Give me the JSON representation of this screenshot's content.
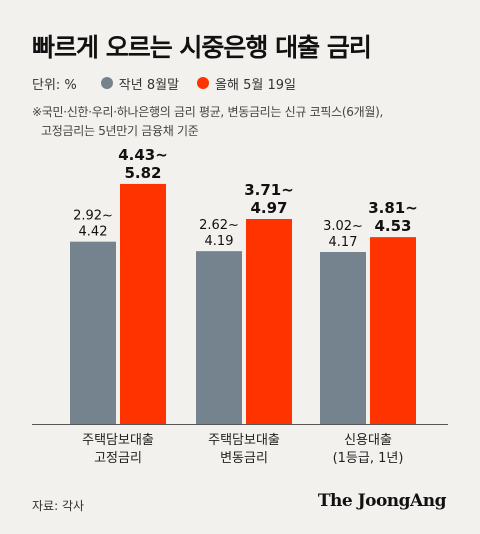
{
  "title": "빠르게 오르는 시중은행 대출 금리",
  "unit": "단위: %",
  "note": [
    "※국민·신한·우리·하나은행의 금리 평균, 변동금리는 신규 코픽스(6개월),",
    "고정금리는 5년만기 금융채 기준"
  ],
  "source": "자료: 각사",
  "brand": "The JoongAng",
  "colors": {
    "prev": "#75838f",
    "curr": "#ff3300",
    "axis": "#555555"
  },
  "chart_data": {
    "type": "bar",
    "categories": [
      [
        "주택담보대출",
        "고정금리"
      ],
      [
        "주택담보대출",
        "변동금리"
      ],
      [
        "신용대출",
        "(1등급, 1년)"
      ]
    ],
    "series": [
      {
        "name": "작년 8월말",
        "values": [
          4.42,
          4.19,
          4.17
        ],
        "labels": [
          [
            "2.92~",
            "4.42"
          ],
          [
            "2.62~",
            "4.19"
          ],
          [
            "3.02~",
            "4.17"
          ]
        ]
      },
      {
        "name": "올해 5월 19일",
        "values": [
          5.82,
          4.97,
          4.53
        ],
        "labels": [
          [
            "4.43~",
            "5.82"
          ],
          [
            "3.71~",
            "4.97"
          ],
          [
            "3.81~",
            "4.53"
          ]
        ]
      }
    ],
    "ylim": [
      0,
      6.4
    ],
    "grid": false,
    "legend": "top-left"
  }
}
